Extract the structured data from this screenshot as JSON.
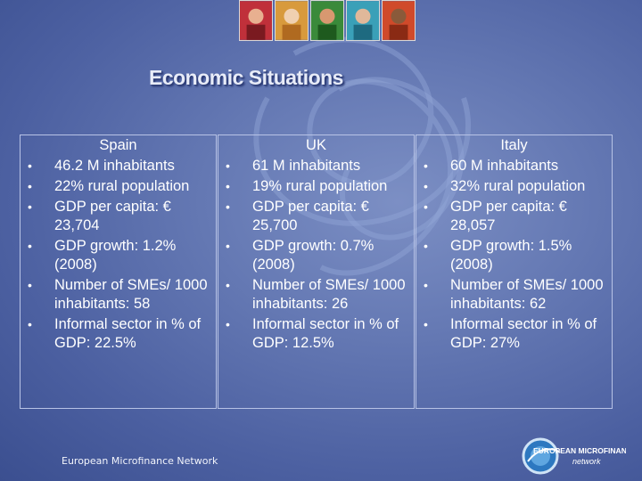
{
  "title": "Economic Situations",
  "columns": [
    {
      "heading": "Spain",
      "items": [
        "46.2 M inhabitants",
        "22% rural population",
        "GDP per capita: € 23,704",
        "GDP growth: 1.2% (2008)",
        "Number of SMEs/ 1000 inhabitants: 58",
        "Informal sector in % of GDP: 22.5%"
      ]
    },
    {
      "heading": "UK",
      "items": [
        "61 M inhabitants",
        "19% rural population",
        "GDP per capita: € 25,700",
        "GDP growth: 0.7% (2008)",
        "Number of SMEs/ 1000 inhabitants: 26",
        "Informal sector in % of GDP: 12.5%"
      ]
    },
    {
      "heading": "Italy",
      "items": [
        "60 M inhabitants",
        "32% rural population",
        "GDP per capita: € 28,057",
        "GDP growth: 1.5% (2008)",
        "Number of SMEs/ 1000 inhabitants: 62",
        "Informal sector in % of GDP: 27%"
      ]
    }
  ],
  "footer": {
    "text": "European Microfinance Network",
    "logo_line1": "EUROPEAN MICROFINANCE",
    "logo_line2": "network"
  },
  "colors": {
    "background": "#5a6eab",
    "border": "#b8c3e6",
    "text": "#ffffff"
  }
}
